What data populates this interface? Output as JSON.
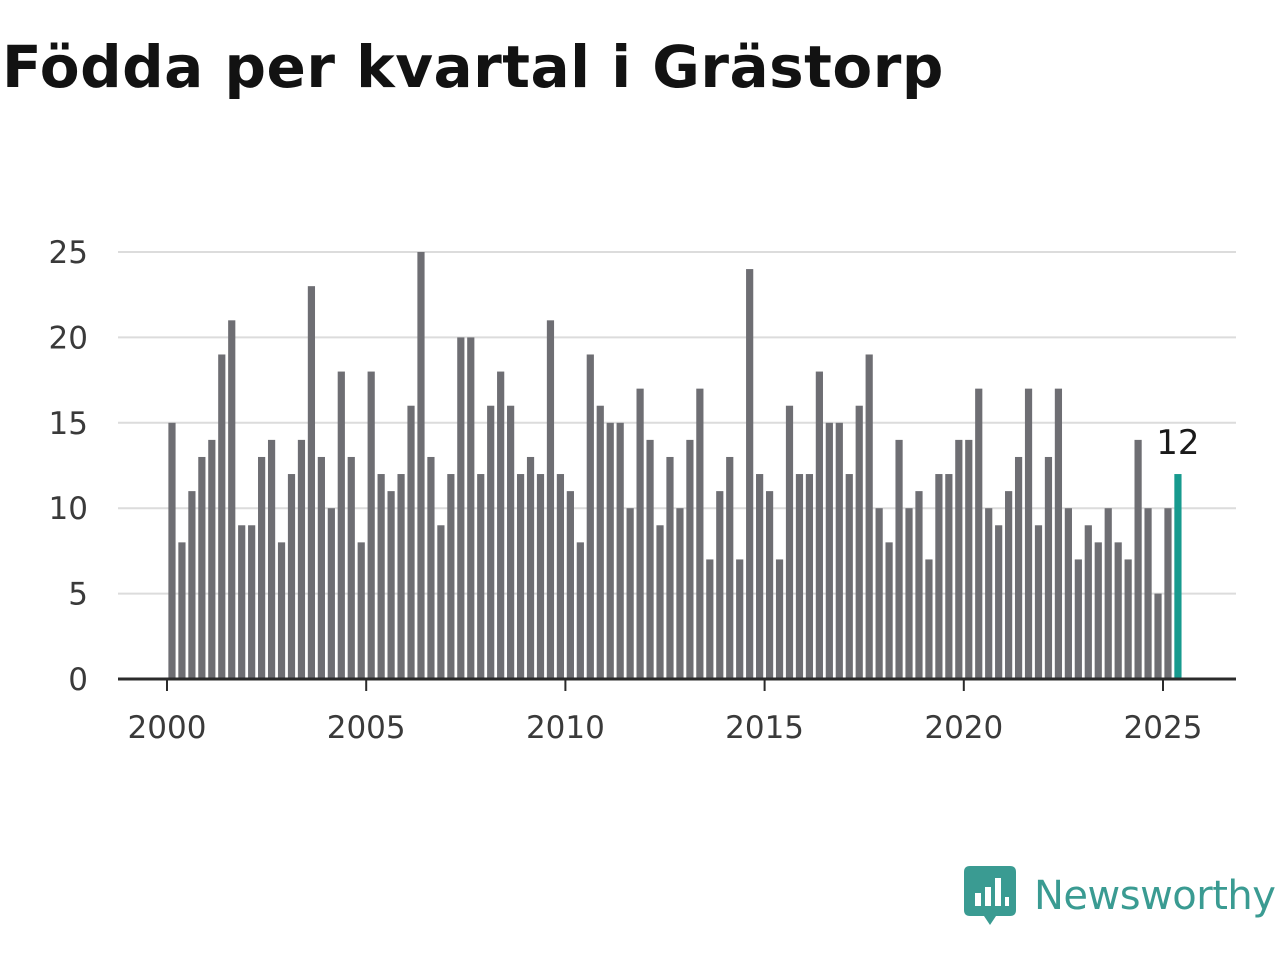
{
  "title": "Födda per kvartal i Grästorp",
  "brand": {
    "name": "Newsworthy",
    "logo_icon": "newsworthy-chart-bubble-icon"
  },
  "colors": {
    "bar": "#6e6e73",
    "highlight": "#179a8e",
    "grid": "#dcdcdc",
    "axis": "#2b2b2b",
    "brand": "#3a9b92"
  },
  "chart_data": {
    "type": "bar",
    "title": "Födda per kvartal i Grästorp",
    "xlabel": "",
    "ylabel": "",
    "x_start": 2000,
    "x_start_quarter": 1,
    "x_ticks": [
      2000,
      2005,
      2010,
      2015,
      2020,
      2025
    ],
    "y_ticks": [
      0,
      5,
      10,
      15,
      20,
      25
    ],
    "ylim": [
      0,
      25
    ],
    "grid": true,
    "values": [
      15,
      8,
      11,
      13,
      14,
      19,
      21,
      9,
      9,
      13,
      14,
      8,
      12,
      14,
      23,
      13,
      10,
      18,
      13,
      8,
      18,
      12,
      11,
      12,
      16,
      25,
      13,
      9,
      12,
      20,
      20,
      12,
      16,
      18,
      16,
      12,
      13,
      12,
      21,
      12,
      11,
      8,
      19,
      16,
      15,
      15,
      10,
      17,
      14,
      9,
      13,
      10,
      14,
      17,
      7,
      11,
      13,
      7,
      24,
      12,
      11,
      7,
      16,
      12,
      12,
      18,
      15,
      15,
      12,
      16,
      19,
      10,
      8,
      14,
      10,
      11,
      7,
      12,
      12,
      14,
      14,
      17,
      10,
      9,
      11,
      13,
      17,
      9,
      13,
      17,
      10,
      7,
      9,
      8,
      10,
      8,
      7,
      14,
      10,
      5,
      10,
      12
    ],
    "highlight_last": true,
    "last_value_label": "12"
  }
}
